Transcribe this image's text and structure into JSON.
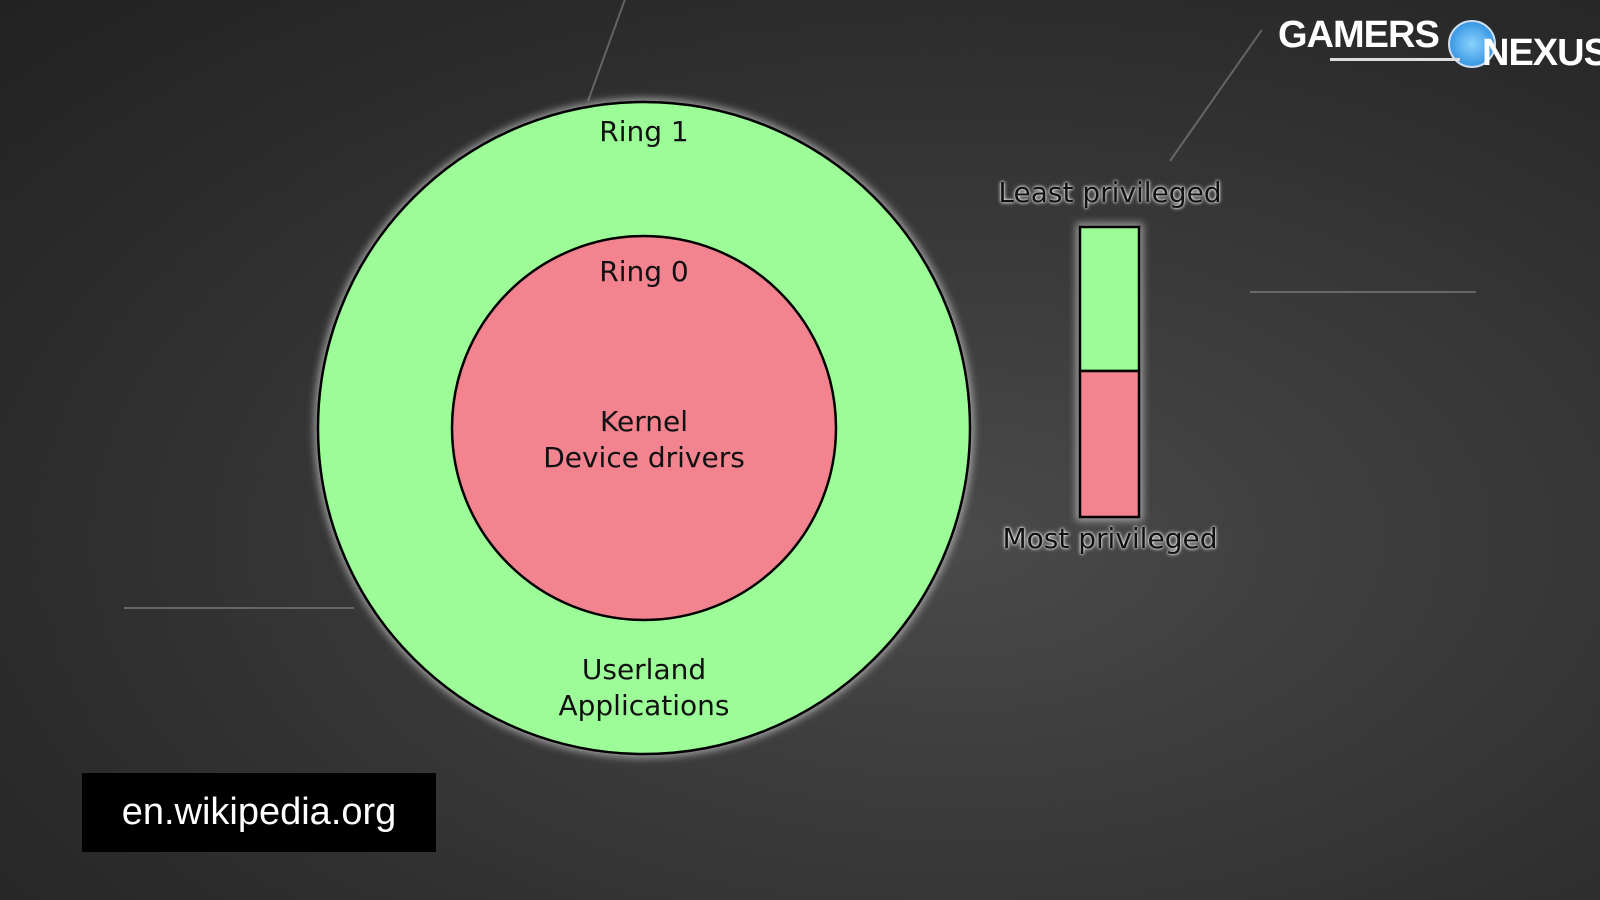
{
  "diagram": {
    "outer_ring": {
      "label": "Ring 1",
      "content": [
        "Userland",
        "Applications"
      ],
      "color": "#9cfc97"
    },
    "inner_ring": {
      "label": "Ring 0",
      "content": [
        "Kernel",
        "Device drivers"
      ],
      "color": "#f2838f"
    },
    "legend": {
      "top_label": "Least privileged",
      "bottom_label": "Most privileged"
    }
  },
  "source": "en.wikipedia.org",
  "logo": "GAMERS NEXUS"
}
